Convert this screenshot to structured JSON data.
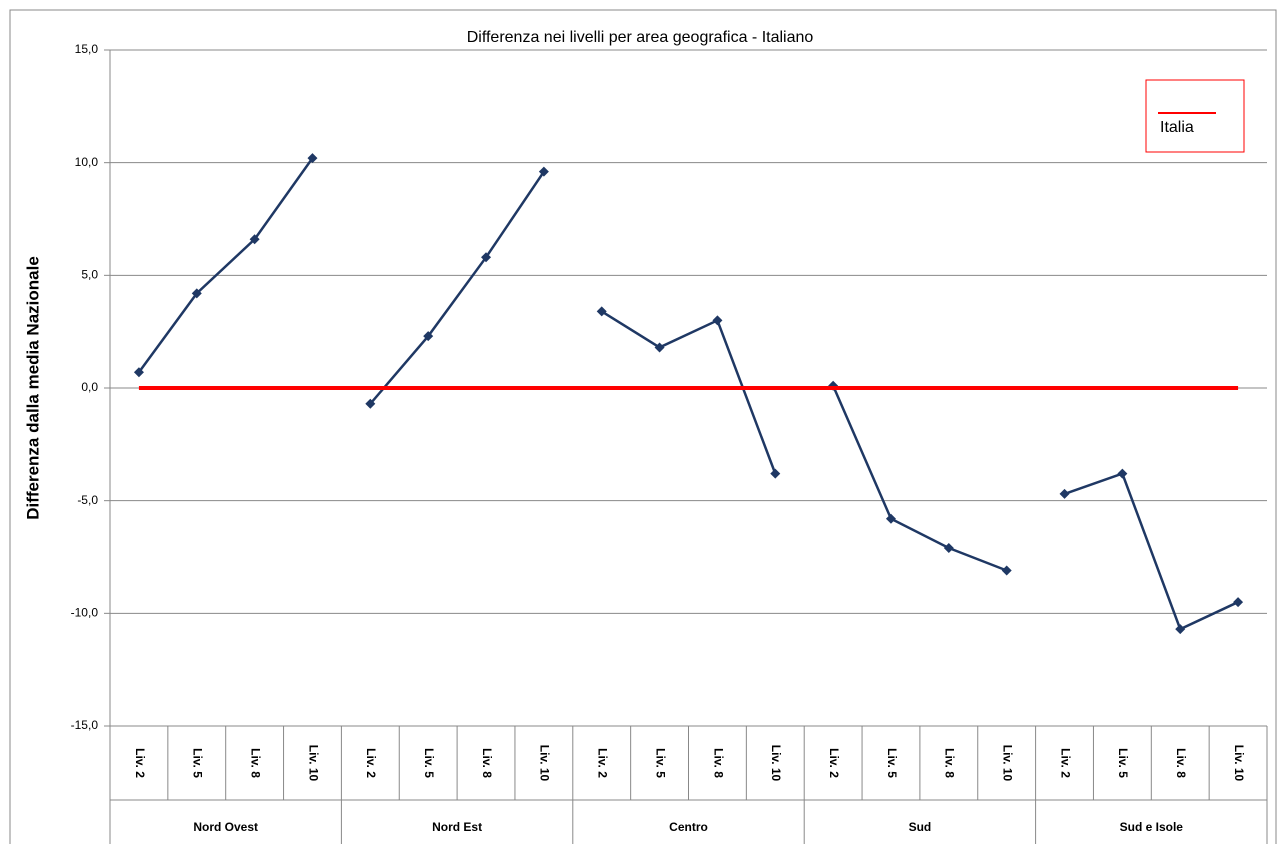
{
  "chart_data": {
    "type": "line",
    "title": "Differenza nei livelli per area geografica - Italiano",
    "y_label": "Differenza dalla media Nazionale",
    "categories": [
      "Liv. 2",
      "Liv. 5",
      "Liv. 8",
      "Liv. 10",
      "Liv. 2",
      "Liv. 5",
      "Liv. 8",
      "Liv. 10",
      "Liv. 2",
      "Liv. 5",
      "Liv. 8",
      "Liv. 10",
      "Liv. 2",
      "Liv. 5",
      "Liv. 8",
      "Liv. 10",
      "Liv. 2",
      "Liv. 5",
      "Liv. 8",
      "Liv. 10"
    ],
    "groups": [
      "Nord Ovest",
      "Nord Est",
      "Centro",
      "Sud",
      "Sud e Isole"
    ],
    "series": [
      {
        "color": "#1f3864",
        "values": [
          0.7,
          4.2,
          6.6,
          10.2,
          null,
          null,
          null,
          null,
          null,
          null,
          null,
          null,
          null,
          null,
          null,
          null,
          null,
          null,
          null,
          null
        ]
      },
      {
        "color": "#1f3864",
        "values": [
          null,
          null,
          null,
          null,
          -0.7,
          2.3,
          5.8,
          9.6,
          null,
          null,
          null,
          null,
          null,
          null,
          null,
          null,
          null,
          null,
          null,
          null
        ]
      },
      {
        "color": "#1f3864",
        "values": [
          null,
          null,
          null,
          null,
          null,
          null,
          null,
          null,
          3.4,
          1.8,
          3.0,
          -3.8,
          null,
          null,
          null,
          null,
          null,
          null,
          null,
          null
        ]
      },
      {
        "color": "#1f3864",
        "values": [
          null,
          null,
          null,
          null,
          null,
          null,
          null,
          null,
          null,
          null,
          null,
          null,
          0.1,
          -5.8,
          -7.1,
          -8.1,
          null,
          null,
          null,
          null
        ]
      },
      {
        "color": "#1f3864",
        "values": [
          null,
          null,
          null,
          null,
          null,
          null,
          null,
          null,
          null,
          null,
          null,
          null,
          null,
          null,
          null,
          null,
          -4.7,
          -3.8,
          -10.7,
          -9.5
        ]
      },
      {
        "name": "Italia",
        "color": "#ff0000",
        "markers": false,
        "values": [
          0,
          0,
          0,
          0,
          0,
          0,
          0,
          0,
          0,
          0,
          0,
          0,
          0,
          0,
          0,
          0,
          0,
          0,
          0,
          0
        ]
      }
    ],
    "ylim": [
      -15,
      15
    ],
    "yticks": [
      {
        "value": -15,
        "label": "-15,0"
      },
      {
        "value": -10,
        "label": "-10,0"
      },
      {
        "value": -5,
        "label": "-5,0"
      },
      {
        "value": 0,
        "label": "0,0"
      },
      {
        "value": 5,
        "label": "5,0"
      },
      {
        "value": 10,
        "label": "10,0"
      },
      {
        "value": 15,
        "label": "15,0"
      }
    ],
    "grid": true,
    "legend": "top-right"
  }
}
